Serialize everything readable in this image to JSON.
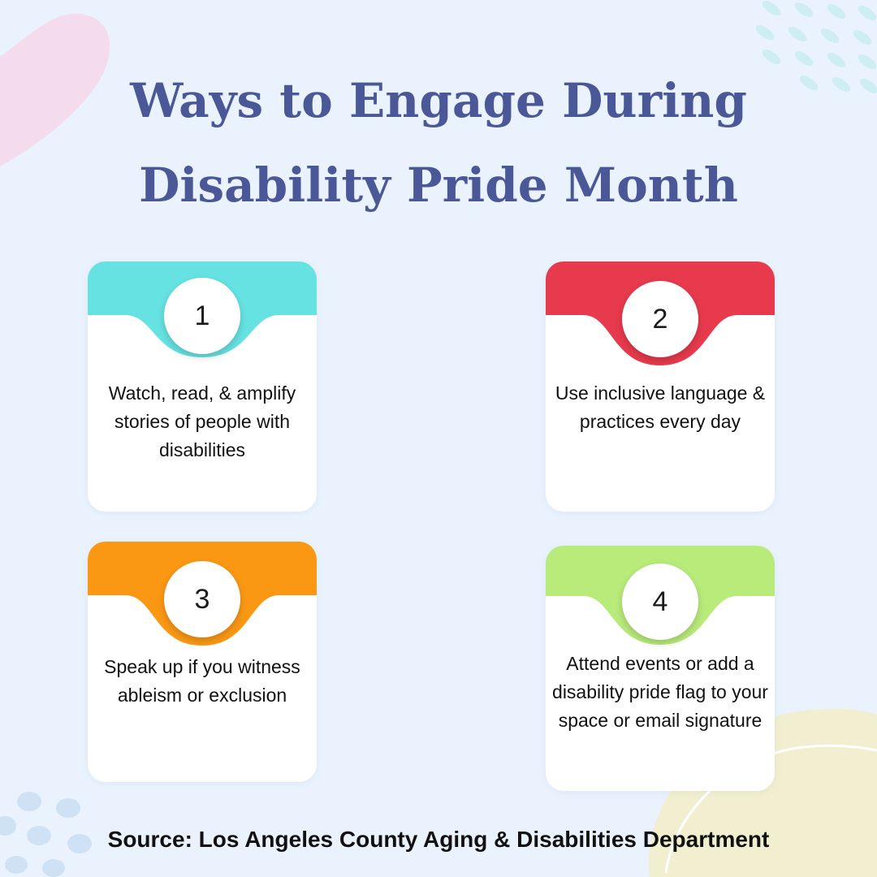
{
  "title": {
    "line1": "Ways to Engage During",
    "line2": "Disability Pride Month"
  },
  "cards": [
    {
      "number": "1",
      "text": "Watch, read, & amplify stories of people with disabilities",
      "color": "#66e2e2"
    },
    {
      "number": "2",
      "text": "Use inclusive language & practices every day",
      "color": "#e73a4c"
    },
    {
      "number": "3",
      "text": "Speak up if you witness ableism or exclusion",
      "color": "#fa9814"
    },
    {
      "number": "4",
      "text": "Attend events or add a disability pride flag to your space or email signature",
      "color": "#b9eb7b"
    }
  ],
  "source": "Source: Los Angeles County Aging & Disabilities Department",
  "colors": {
    "background": "#eaf3fd",
    "title": "#4b5898",
    "blob_pink": "#f4dcec",
    "blob_yellow": "#f1efcf",
    "dots_teal": "#cdeef2",
    "dots_blue": "#cfe1f5"
  }
}
